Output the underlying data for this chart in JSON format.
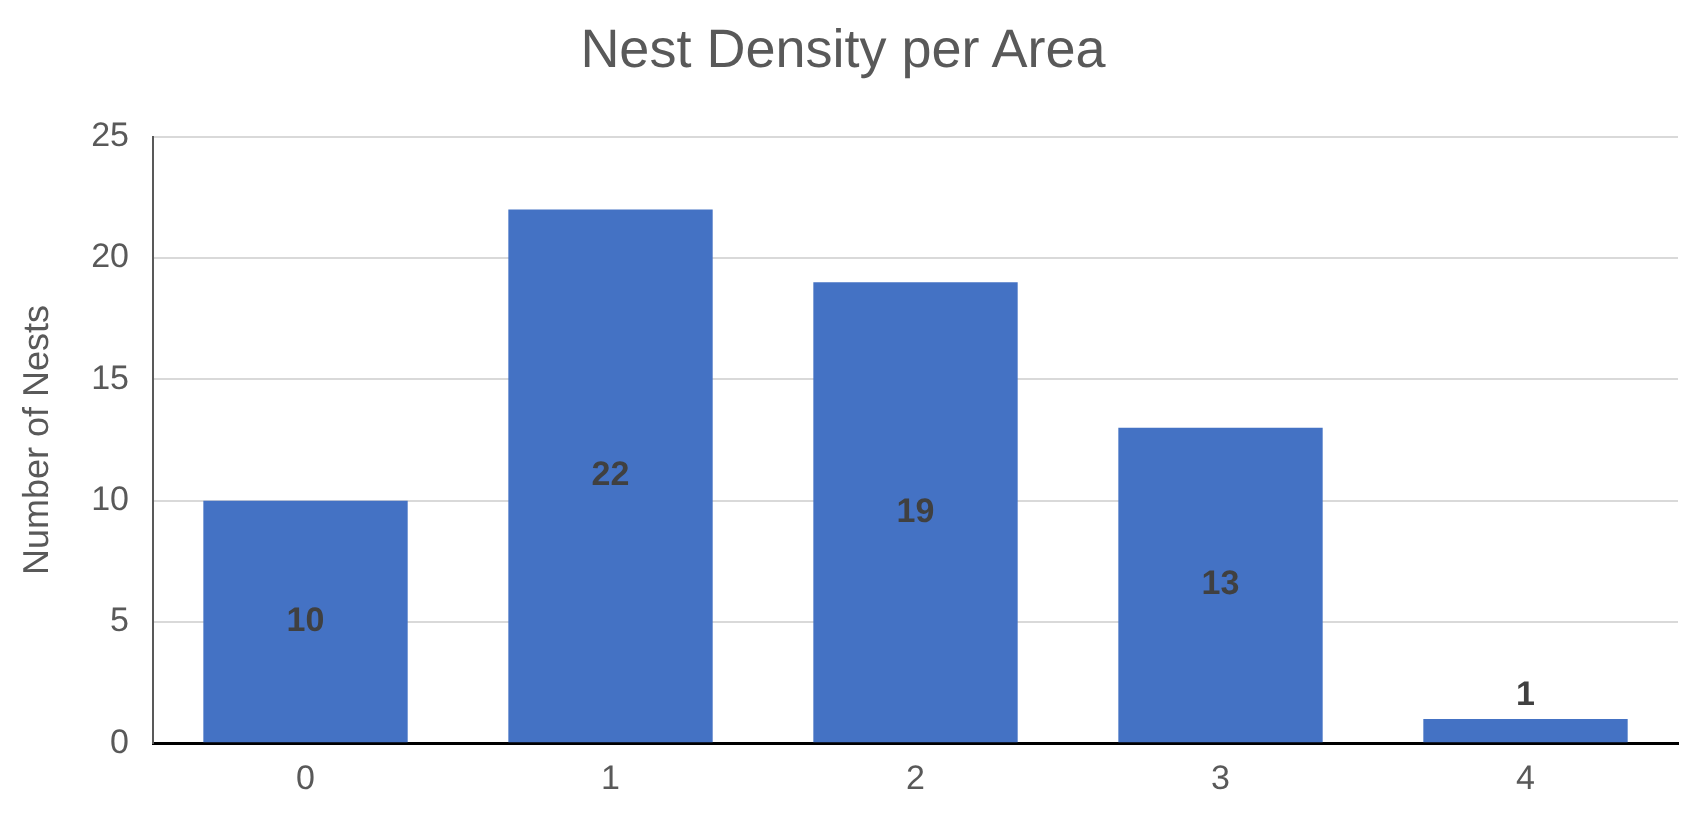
{
  "chart_data": {
    "type": "bar",
    "title": "Nest Density per Area",
    "ylabel": "Number of Nests",
    "categories": [
      "0",
      "1",
      "2",
      "3",
      "4"
    ],
    "values": [
      10,
      22,
      19,
      13,
      1
    ],
    "color": "#4472c4",
    "ylim": [
      0,
      25
    ],
    "yticks": [
      0,
      5,
      10,
      15,
      20,
      25
    ],
    "grid": "y",
    "data_labels": true
  }
}
